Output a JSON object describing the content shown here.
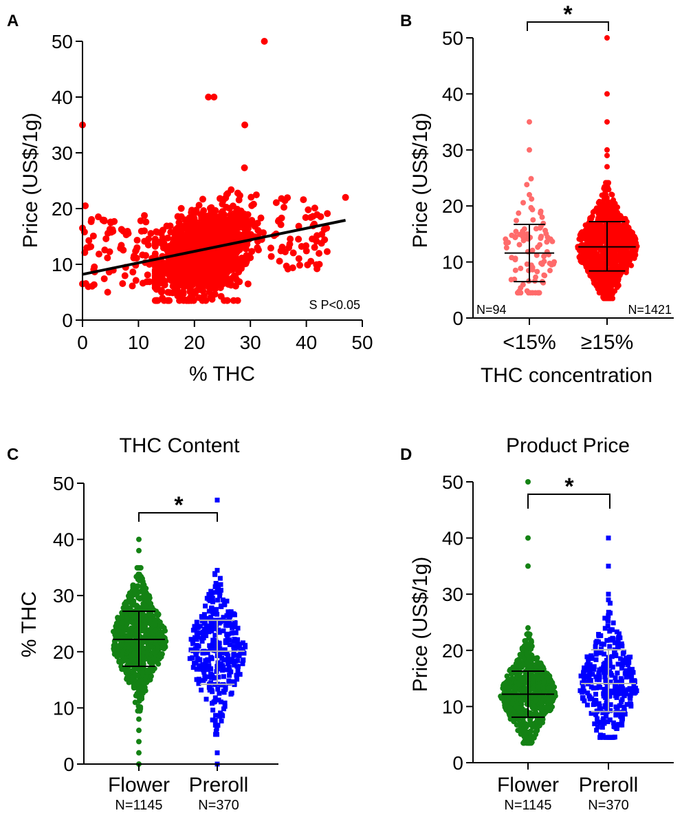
{
  "colors": {
    "red": "#ff0000",
    "light_red": "#ff6b6b",
    "green": "#148214",
    "blue": "#0000ff",
    "gray": "#b4b4b4",
    "black": "#000000"
  },
  "chart_data": [
    {
      "panel": "A",
      "type": "scatter",
      "title": "",
      "xlabel": "% THC",
      "ylabel": "Price (US$/1g)",
      "xlim": [
        0,
        50
      ],
      "ylim": [
        0,
        50
      ],
      "xticks": [
        0,
        10,
        20,
        30,
        40,
        50
      ],
      "yticks": [
        0,
        10,
        20,
        30,
        40,
        50
      ],
      "regression": {
        "x": [
          0,
          47
        ],
        "y": [
          8.2,
          17.9
        ]
      },
      "annotation": "S P<0.05",
      "n_points": 1515,
      "notable_points": [
        {
          "x": 0,
          "y": 35
        },
        {
          "x": 32.5,
          "y": 50
        },
        {
          "x": 22.5,
          "y": 40
        },
        {
          "x": 23.5,
          "y": 40
        },
        {
          "x": 29,
          "y": 35
        },
        {
          "x": 47,
          "y": 22
        },
        {
          "x": 0.5,
          "y": 20.5
        },
        {
          "x": 0,
          "y": 16.5
        },
        {
          "x": 0,
          "y": 6.5
        },
        {
          "x": 4.5,
          "y": 5
        },
        {
          "x": 27,
          "y": 3.5
        }
      ]
    },
    {
      "panel": "B",
      "type": "scatter",
      "title": "",
      "xlabel": "THC concentration",
      "ylabel": "Price (US$/1g)",
      "categories": [
        "<15%",
        "≥15%"
      ],
      "ylim": [
        0,
        50
      ],
      "yticks": [
        0,
        10,
        20,
        30,
        40,
        50
      ],
      "counts": [
        "N=94",
        "N=1421"
      ],
      "series": [
        {
          "name": "<15%",
          "color": "#ff6b6b",
          "mean": 11.6,
          "sd_low": 6.5,
          "sd_high": 16.7,
          "min": 4.5,
          "max": 35,
          "outliers": [
            35,
            30,
            22
          ]
        },
        {
          "name": "≥15%",
          "color": "#ff0000",
          "mean": 12.7,
          "sd_low": 8.4,
          "sd_high": 17.2,
          "min": 3.5,
          "max": 50,
          "outliers": [
            50,
            40,
            35,
            30,
            29,
            27
          ]
        }
      ],
      "significance": "*"
    },
    {
      "panel": "C",
      "type": "scatter",
      "title": "THC Content",
      "xlabel": "",
      "ylabel": "% THC",
      "categories": [
        "Flower",
        "Preroll"
      ],
      "ylim": [
        0,
        50
      ],
      "yticks": [
        0,
        10,
        20,
        30,
        40,
        50
      ],
      "counts": [
        "N=1145",
        "N=370"
      ],
      "series": [
        {
          "name": "Flower",
          "color": "#148214",
          "mean": 22.2,
          "sd_low": 17.4,
          "sd_high": 27.2,
          "min": 0,
          "max": 40,
          "outliers": [
            40,
            38,
            8,
            6,
            4,
            2,
            0
          ]
        },
        {
          "name": "Preroll",
          "color": "#0000ff",
          "mean": 20.1,
          "sd_low": 14.2,
          "sd_high": 25.6,
          "min": 0,
          "max": 47,
          "outliers": [
            47,
            34.5,
            2,
            0
          ]
        }
      ],
      "significance": "*"
    },
    {
      "panel": "D",
      "type": "scatter",
      "title": "Product Price",
      "xlabel": "",
      "ylabel": "Price (US$/1g)",
      "categories": [
        "Flower",
        "Preroll"
      ],
      "ylim": [
        0,
        50
      ],
      "yticks": [
        0,
        10,
        20,
        30,
        40,
        50
      ],
      "counts": [
        "N=1145",
        "N=370"
      ],
      "series": [
        {
          "name": "Flower",
          "color": "#148214",
          "mean": 12.2,
          "sd_low": 8.1,
          "sd_high": 16.3,
          "min": 3.5,
          "max": 50,
          "outliers": [
            50,
            40,
            35,
            24,
            23
          ]
        },
        {
          "name": "Preroll",
          "color": "#0000ff",
          "mean": 14.1,
          "sd_low": 9.1,
          "sd_high": 20.1,
          "min": 4.5,
          "max": 40,
          "outliers": [
            40,
            35,
            30,
            29
          ]
        }
      ],
      "significance": "*"
    }
  ]
}
